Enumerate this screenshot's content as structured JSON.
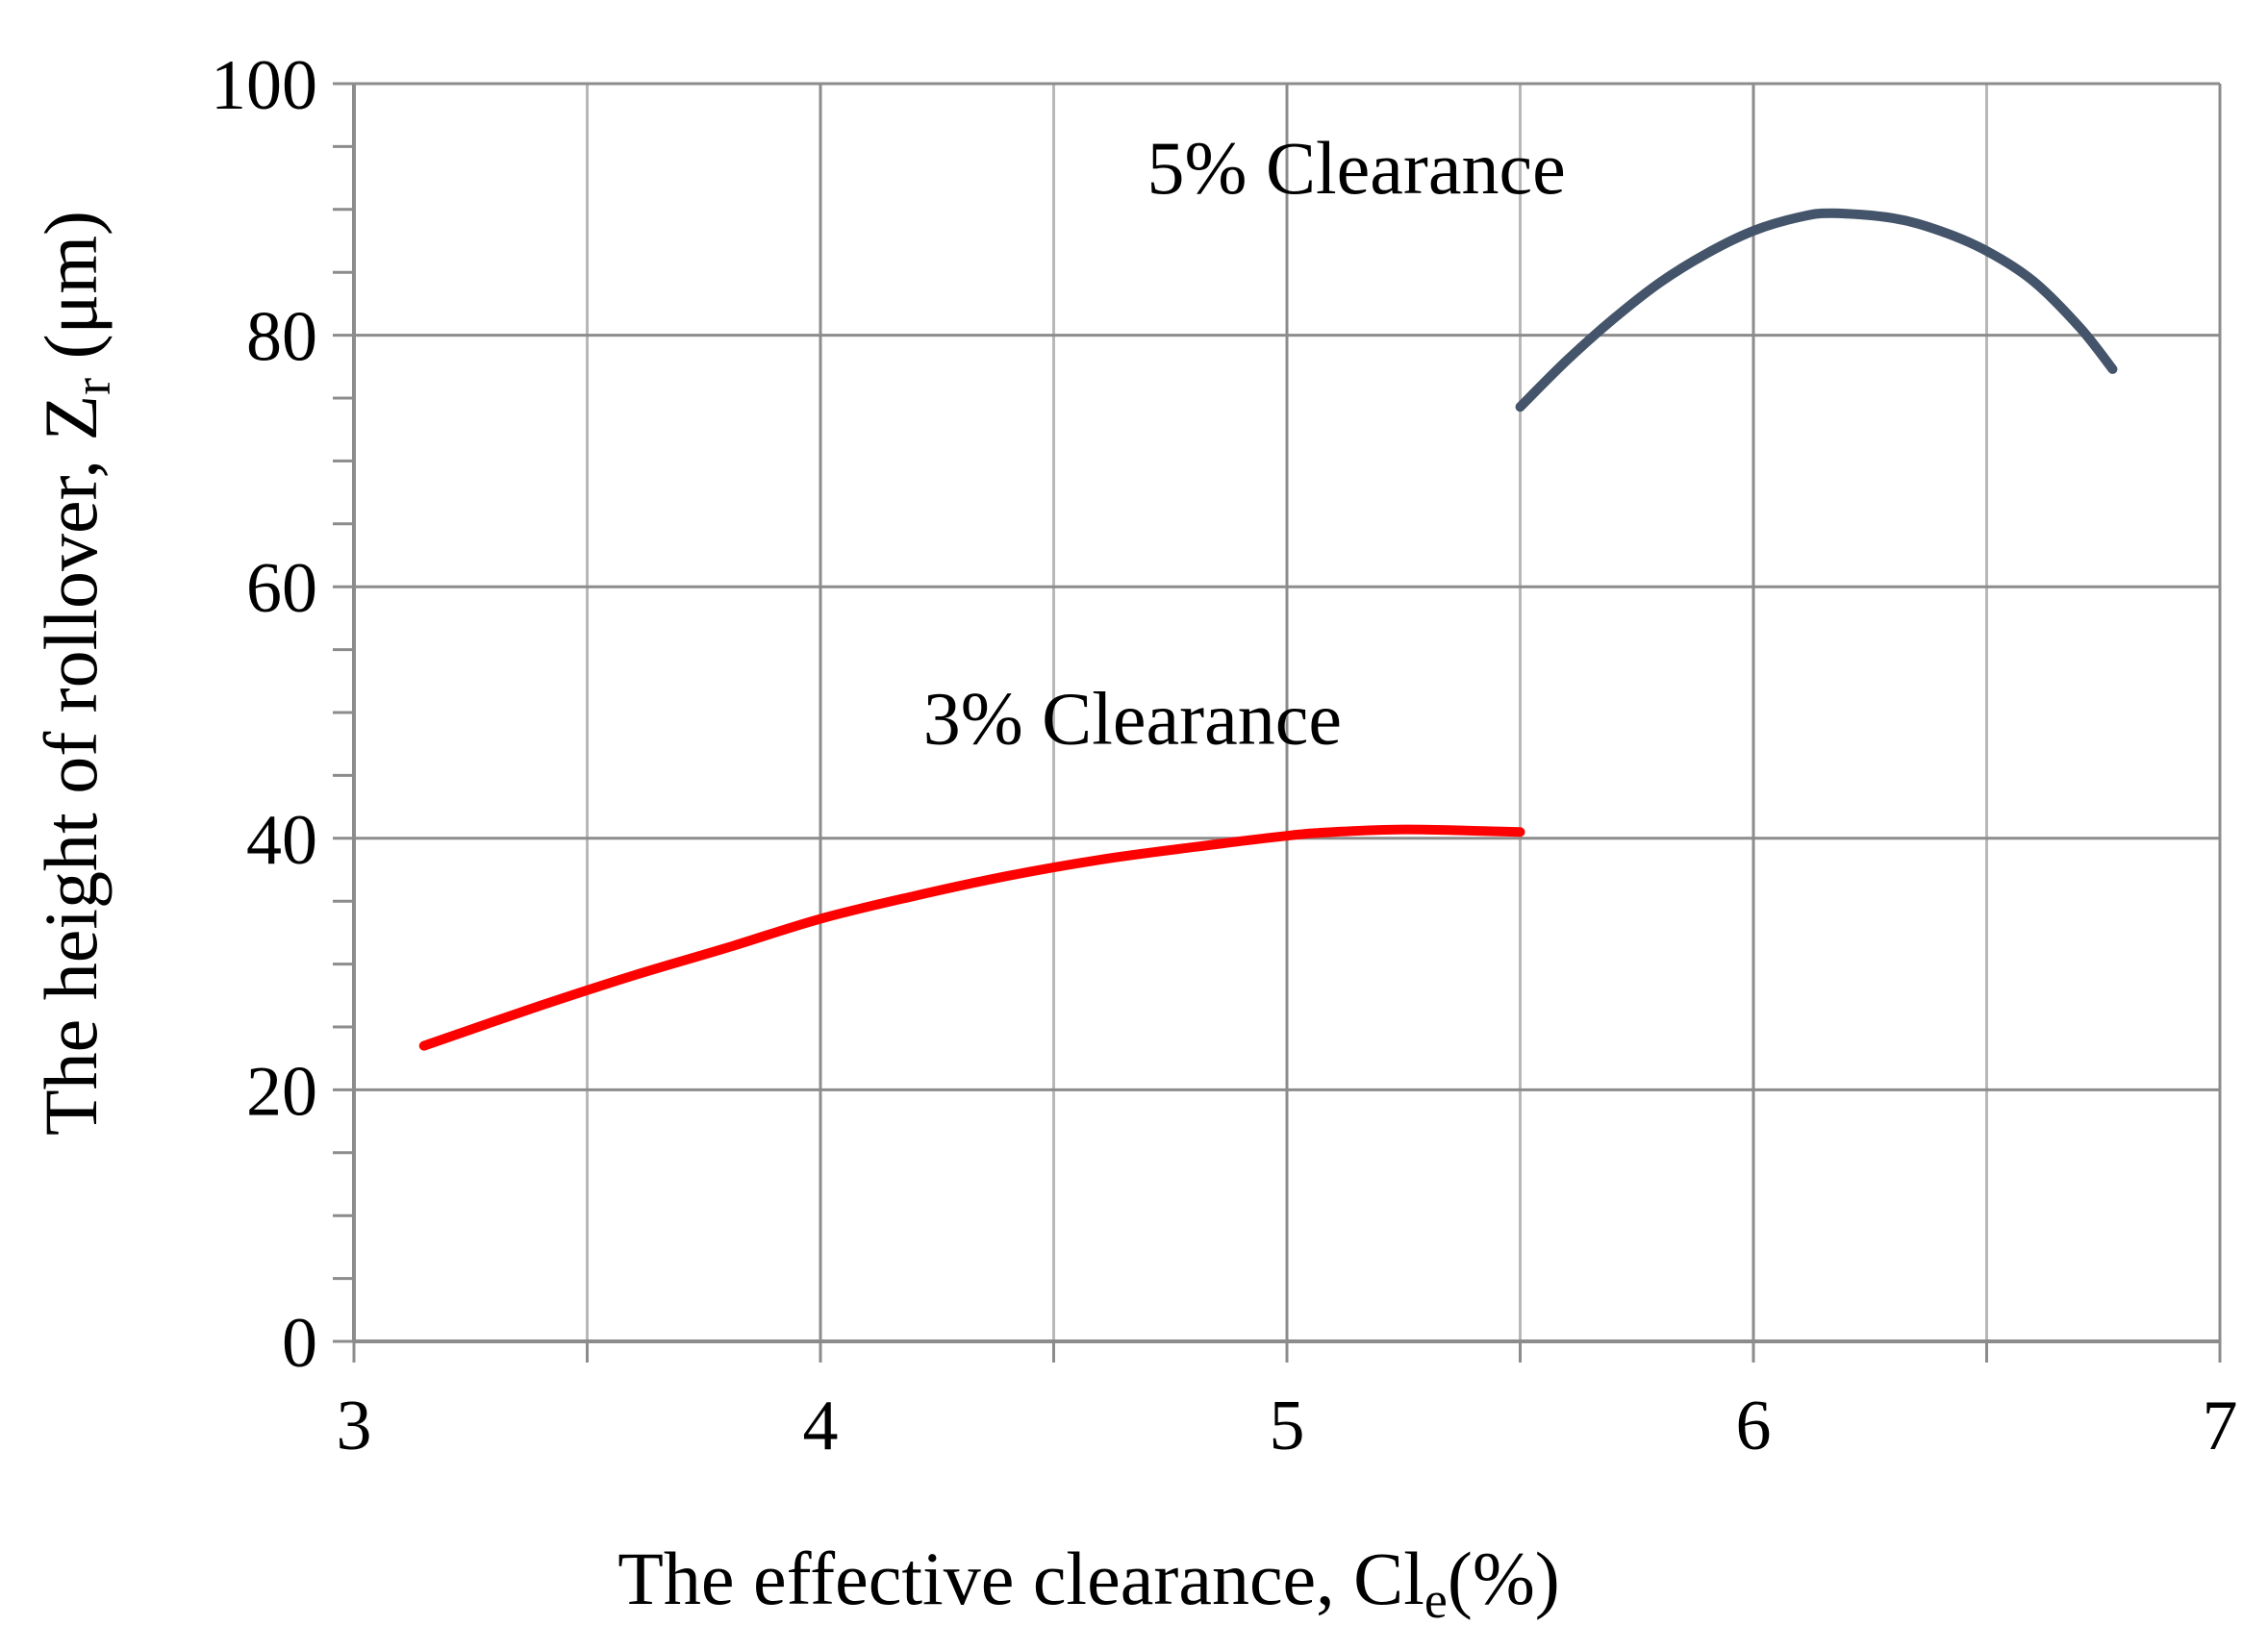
{
  "chart_data": {
    "type": "line",
    "x_axis": {
      "label_main": "The effective clearance, Cl",
      "label_sub": "e",
      "label_tail": "(%)",
      "range": [
        3,
        7
      ],
      "ticks": [
        3,
        4,
        5,
        6,
        7
      ],
      "tick_labels": [
        "3",
        "4",
        "5",
        "6",
        "7"
      ],
      "minor_step": 0.5
    },
    "y_axis": {
      "label_main": "The height of rollover, Z",
      "label_sub": "r",
      "label_tail": " (μm)",
      "range": [
        0,
        100
      ],
      "ticks": [
        0,
        20,
        40,
        60,
        80,
        100
      ],
      "tick_labels": [
        "0",
        "20",
        "40",
        "60",
        "80",
        "100"
      ],
      "minor_step": 5
    },
    "grid": true,
    "series": [
      {
        "key": "3pct",
        "color": "#ff0000",
        "points": [
          [
            3.15,
            23.5
          ],
          [
            3.4,
            26.7
          ],
          [
            3.6,
            29.1
          ],
          [
            3.8,
            31.3
          ],
          [
            4.0,
            33.6
          ],
          [
            4.2,
            35.4
          ],
          [
            4.4,
            37.0
          ],
          [
            4.6,
            38.3
          ],
          [
            4.8,
            39.3
          ],
          [
            5.0,
            40.2
          ],
          [
            5.1,
            40.5
          ],
          [
            5.25,
            40.7
          ],
          [
            5.4,
            40.6
          ],
          [
            5.5,
            40.5
          ]
        ]
      },
      {
        "key": "5pct",
        "color": "#44546a",
        "points": [
          [
            5.5,
            74.3
          ],
          [
            5.6,
            78.0
          ],
          [
            5.7,
            81.3
          ],
          [
            5.8,
            84.2
          ],
          [
            5.9,
            86.5
          ],
          [
            6.0,
            88.3
          ],
          [
            6.1,
            89.4
          ],
          [
            6.17,
            89.7
          ],
          [
            6.3,
            89.3
          ],
          [
            6.4,
            88.3
          ],
          [
            6.5,
            86.7
          ],
          [
            6.6,
            84.3
          ],
          [
            6.7,
            80.6
          ],
          [
            6.77,
            77.3
          ]
        ]
      }
    ],
    "annotations": [
      {
        "key": "ann3",
        "text": "3% Clearance",
        "x": 4.22,
        "y": 47.5
      },
      {
        "key": "ann5",
        "text": "5%  Clearance",
        "x": 4.7,
        "y": 91.3
      }
    ]
  }
}
